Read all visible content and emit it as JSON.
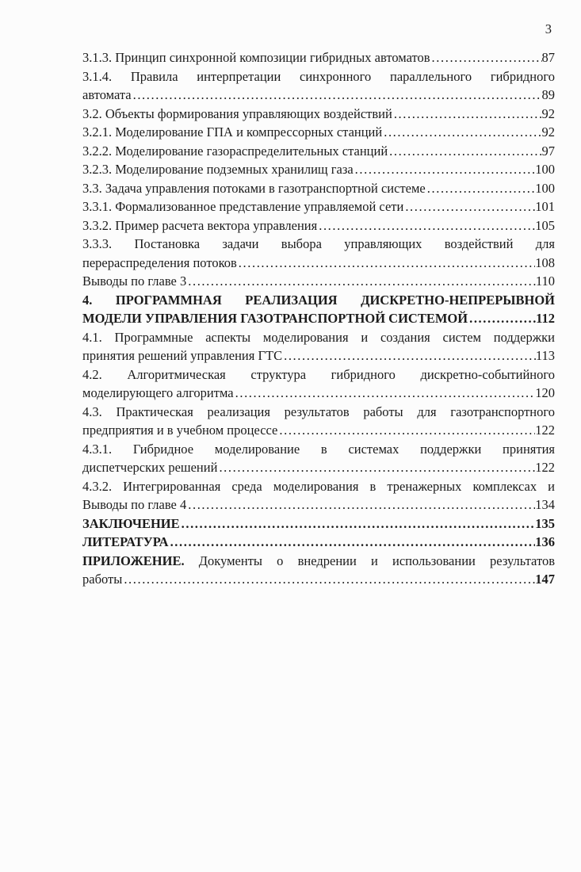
{
  "page": {
    "number": "3",
    "background": "#fcfcfc",
    "text_color": "#1b1b1b"
  },
  "toc": {
    "lines": [
      {
        "text": "3.1.3. Принцип синхронной композиции гибридных автоматов",
        "page": "87"
      },
      {
        "text": "3.1.4. Правила интерпретации синхронного параллельного гибридного",
        "fill": true
      },
      {
        "text": "автомата",
        "page": "89"
      },
      {
        "text": "3.2. Объекты формирования управляющих воздействий",
        "page": "92"
      },
      {
        "text": "3.2.1. Моделирование ГПА и компрессорных станций",
        "page": "92"
      },
      {
        "text": "3.2.2. Моделирование газораспределительных станций",
        "page": "97"
      },
      {
        "text": "3.2.3. Моделирование подземных хранилищ газа",
        "page": "100"
      },
      {
        "text": "3.3. Задача управления потоками в газотранспортной системе",
        "page": "100"
      },
      {
        "text": "3.3.1. Формализованное представление управляемой сети",
        "page": "101"
      },
      {
        "text": "3.3.2. Пример расчета вектора управления",
        "page": "105"
      },
      {
        "text": "3.3.3. Постановка задачи выбора управляющих воздействий для",
        "fill": true
      },
      {
        "text": "перераспределения потоков",
        "page": "108"
      },
      {
        "text": "Выводы по главе 3",
        "page": "110"
      },
      {
        "text": "4. ПРОГРАММНАЯ РЕАЛИЗАЦИЯ ДИСКРЕТНО-НЕПРЕРЫВНОЙ",
        "bold": true,
        "fill": true
      },
      {
        "text": "МОДЕЛИ УПРАВЛЕНИЯ ГАЗОТРАНСПОРТНОЙ СИСТЕМОЙ",
        "page": "112",
        "bold": true
      },
      {
        "text": "4.1. Программные аспекты моделирования и создания систем поддержки",
        "fill": true
      },
      {
        "text": "принятия решений управления ГТС",
        "page": "113"
      },
      {
        "text": "4.2. Алгоритмическая структура гибридного дискретно-событийного",
        "fill": true
      },
      {
        "text": "моделирующего алгоритма",
        "page": "120"
      },
      {
        "text": "4.3. Практическая реализация результатов работы для газотранспортного",
        "fill": true
      },
      {
        "text": "предприятия и в учебном процессе",
        "page": "122"
      },
      {
        "text": "4.3.1. Гибридное моделирование в системах поддержки принятия",
        "fill": true
      },
      {
        "text": "диспетчерских решений",
        "page": "122"
      },
      {
        "text": "4.3.2. Интегрированная среда моделирования в тренажерных комплексах и",
        "fill": true
      },
      {
        "text": "Выводы по главе 4",
        "page": "134"
      },
      {
        "text": "ЗАКЛЮЧЕНИЕ",
        "page": "135",
        "bold": true
      },
      {
        "text": "ЛИТЕРАТУРА",
        "page": "136",
        "bold": true
      },
      {
        "bold_prefix": "ПРИЛОЖЕНИЕ.",
        "text": "Документы о внедрении и использовании результатов",
        "fill": true
      },
      {
        "text": "работы",
        "page": "147",
        "page_bold": true
      }
    ]
  }
}
